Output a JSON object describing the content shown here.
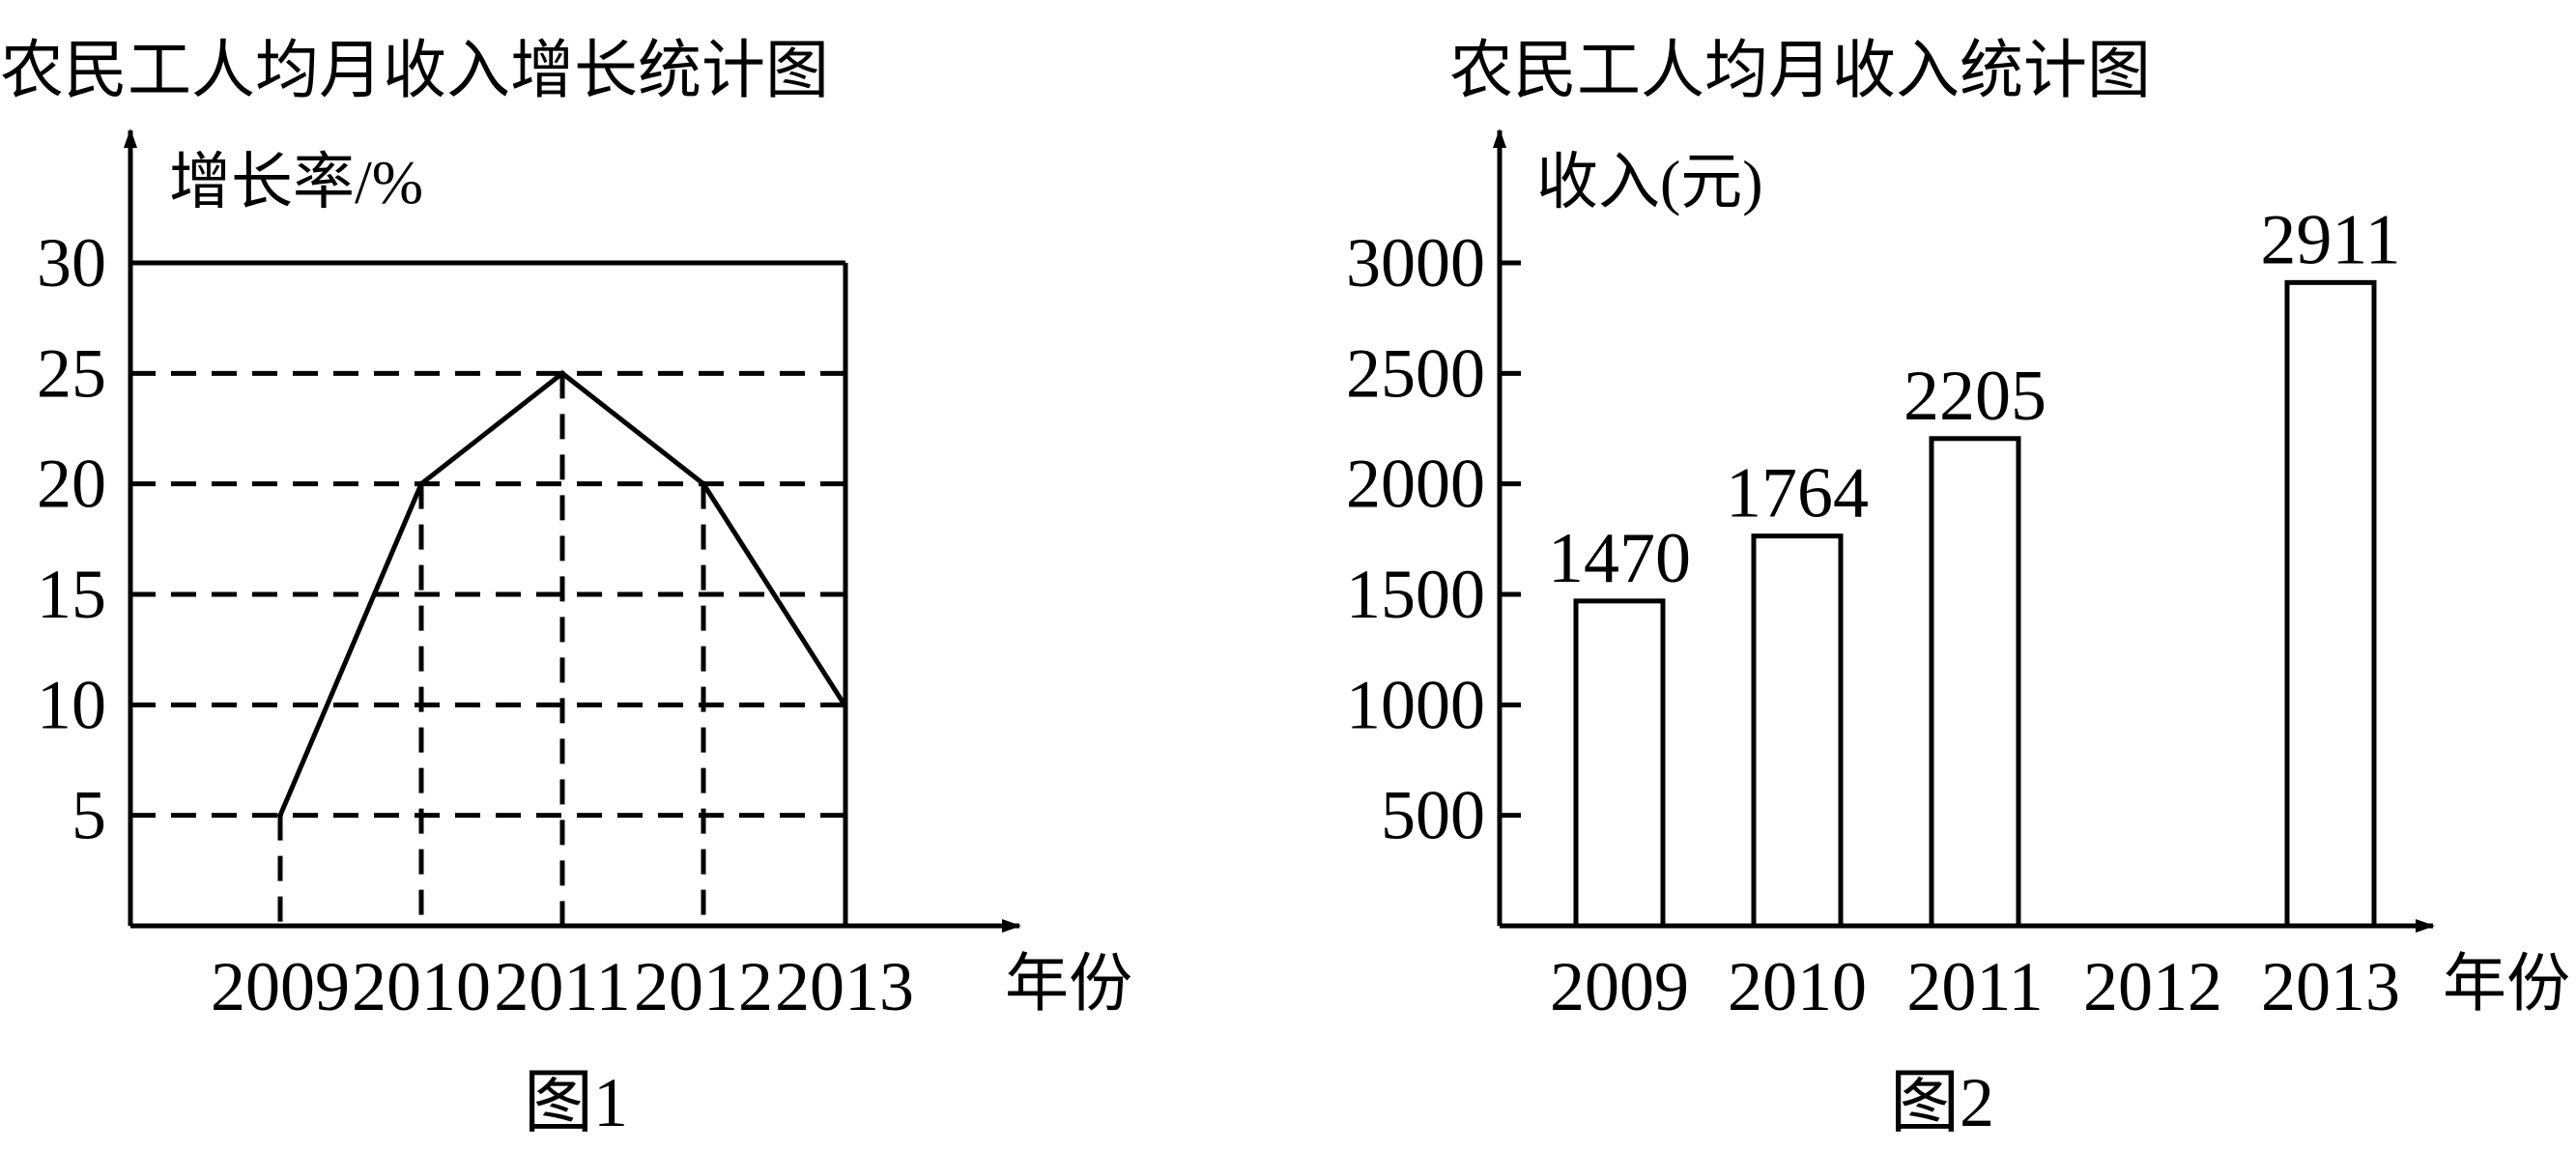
{
  "chart_data": [
    {
      "type": "line",
      "title": "农民工人均月收入增长统计图",
      "ylabel": "增长率/%",
      "xlabel": "年份",
      "caption": "图1",
      "categories": [
        "2009",
        "2010",
        "2011",
        "2012",
        "2013"
      ],
      "values": [
        5,
        20,
        25,
        20,
        10
      ],
      "yticks": [
        5,
        10,
        15,
        20,
        25,
        30
      ],
      "ylim": [
        0,
        30
      ],
      "grid": "dashed",
      "color": "#000000"
    },
    {
      "type": "bar",
      "title": "农民工人均月收入统计图",
      "ylabel": "收入(元)",
      "xlabel": "年份",
      "caption": "图2",
      "categories": [
        "2009",
        "2010",
        "2011",
        "2012",
        "2013"
      ],
      "values": [
        1470,
        1764,
        2205,
        null,
        2911
      ],
      "data_labels": [
        "1470",
        "1764",
        "2205",
        "",
        "2911"
      ],
      "yticks": [
        500,
        1000,
        1500,
        2000,
        2500,
        3000
      ],
      "ylim": [
        0,
        3000
      ],
      "grid": "none",
      "color": "#000000"
    }
  ]
}
